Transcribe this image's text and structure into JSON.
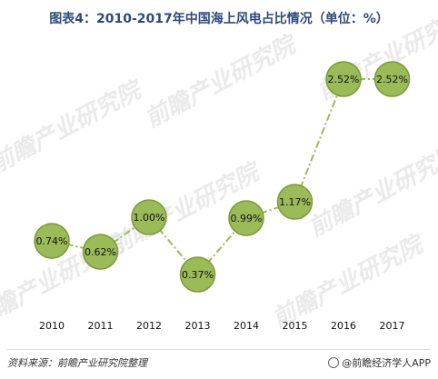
{
  "header": {
    "title": "图表4：2010-2017年中国海上风电占比情况（单位：%）"
  },
  "watermark": {
    "text": "前瞻产业研究院"
  },
  "footer": {
    "source": "资料来源：前瞻产业研究院整理",
    "credit": "@前瞻经济学人APP"
  },
  "colors": {
    "marker_fill": "#9bbb59",
    "marker_stroke": "#7a9a3a",
    "line": "#9bbb59",
    "title": "#2e4a7d"
  },
  "chart_data": {
    "type": "line",
    "title": "图表4：2010-2017年中国海上风电占比情况（单位：%）",
    "categories": [
      "2010",
      "2011",
      "2012",
      "2013",
      "2014",
      "2015",
      "2016",
      "2017"
    ],
    "series": [
      {
        "values": [
          0.74,
          0.62,
          1.0,
          0.37,
          0.99,
          1.17,
          2.52,
          2.52
        ],
        "labels": [
          "0.74%",
          "0.62%",
          "1.00%",
          "0.37%",
          "0.99%",
          "1.17%",
          "2.52%",
          "2.52%"
        ]
      }
    ],
    "line_style": "dash-dot",
    "marker": "circle",
    "grid": false,
    "legend": "none"
  }
}
